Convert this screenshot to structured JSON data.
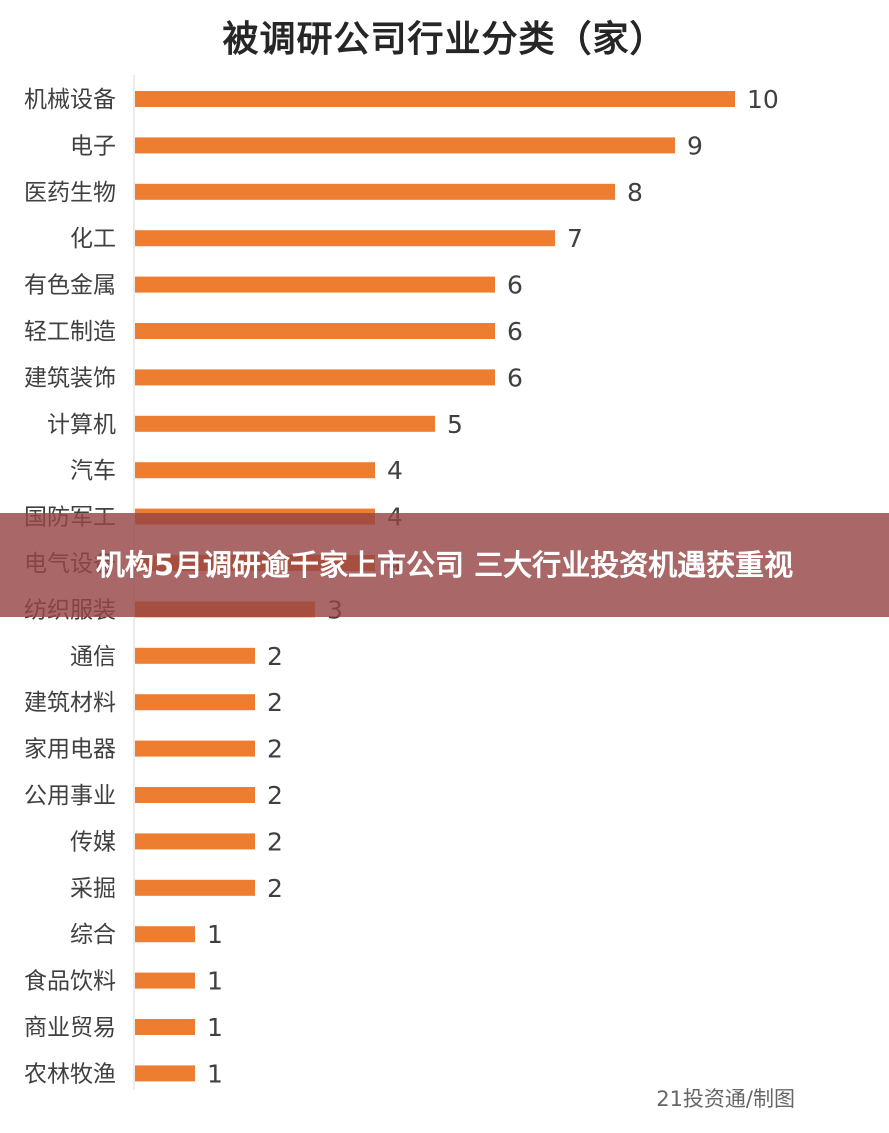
{
  "chart_data": {
    "type": "bar",
    "orientation": "horizontal",
    "title": "被调研公司行业分类（家）",
    "categories": [
      "机械设备",
      "电子",
      "医药生物",
      "化工",
      "有色金属",
      "轻工制造",
      "建筑装饰",
      "计算机",
      "汽车",
      "国防军工",
      "电气设备",
      "纺织服装",
      "通信",
      "建筑材料",
      "家用电器",
      "公用事业",
      "传媒",
      "采掘",
      "综合",
      "食品饮料",
      "商业贸易",
      "农林牧渔"
    ],
    "values": [
      10,
      9,
      8,
      7,
      6,
      6,
      6,
      5,
      4,
      4,
      4,
      3,
      2,
      2,
      2,
      2,
      2,
      2,
      1,
      1,
      1,
      1
    ],
    "value_labels": [
      "10",
      "9",
      "8",
      "7",
      "6",
      "6",
      "6",
      "5",
      "4",
      "4",
      "4",
      "3",
      "2",
      "2",
      "2",
      "2",
      "2",
      "2",
      "1",
      "1",
      "1",
      "1"
    ],
    "xlim": [
      0,
      10
    ],
    "bar_color": "#ED7D31",
    "data_labels": true,
    "grid": false,
    "legend": "none"
  },
  "banner": {
    "text": "机构5月调研逾千家上市公司 三大行业投资机遇获重视"
  },
  "source": "21投资通/制图"
}
